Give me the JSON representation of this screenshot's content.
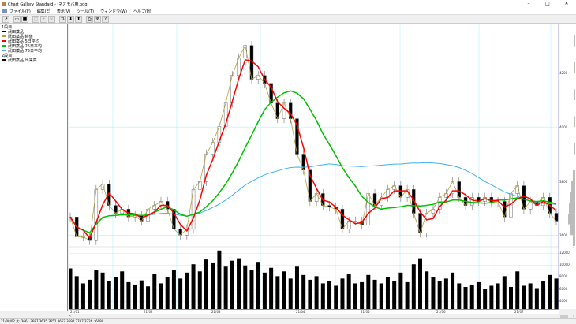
{
  "window": {
    "title": "Chart Gallery Standard - [ネオモバ用.pgg]",
    "minimize": "–",
    "maximize": "□",
    "close": "✕"
  },
  "menu": [
    "ファイル(F)",
    "編集(E)",
    "表示(V)",
    "ツール(T)",
    "ウィンドウ(W)",
    "ヘルプ(H)"
  ],
  "toolbar": [
    {
      "icon": "chart-icon",
      "glyph": "↗"
    },
    {
      "icon": "open-folder-icon",
      "glyph": "▭"
    },
    {
      "icon": "save-icon",
      "glyph": "■"
    },
    {
      "icon": "copy-icon",
      "glyph": "▢",
      "disabled": true
    },
    {
      "icon": "add-icon",
      "glyph": "+",
      "disabled": true
    },
    {
      "icon": "delete-icon",
      "glyph": "×",
      "disabled": true
    },
    {
      "icon": "sort-icon",
      "glyph": "⇅"
    },
    {
      "icon": "arrow-down-icon",
      "glyph": "⬇"
    },
    {
      "icon": "arrow-up-icon",
      "glyph": "⬆"
    },
    {
      "icon": "print-icon",
      "glyph": "⎙"
    },
    {
      "icon": "pin-icon",
      "glyph": "♆"
    },
    {
      "icon": "help-icon",
      "glyph": "?"
    }
  ],
  "legend": {
    "panel1_label": "1段目",
    "panel1": [
      {
        "label": "武田薬品",
        "color": "#000000"
      },
      {
        "label": "武田薬品 終値",
        "color": "#b0a040"
      },
      {
        "label": "武田薬品 5日平均",
        "color": "#ff0000"
      },
      {
        "label": "武田薬品 25日平均",
        "color": "#00c000"
      },
      {
        "label": "武田薬品 75日平均",
        "color": "#40b0f0"
      }
    ],
    "panel2_label": "2段目",
    "panel2": [
      {
        "label": "武田薬品 出来高",
        "color": "#000000"
      }
    ]
  },
  "colors": {
    "close": "#b0a040",
    "ma5": "#ff0000",
    "ma25": "#00c000",
    "ma75": "#40b0f0",
    "grid": "#b0f0f8",
    "axis": "#8888dd"
  },
  "chart_data": {
    "type": "candlestick",
    "price_axis": {
      "ticks": [
        "4200",
        "4000",
        "3800",
        "3600"
      ],
      "range": [
        3560,
        4380
      ]
    },
    "volume_axis": {
      "ticks": [
        "12000",
        "10000",
        "8000",
        "6000",
        "4000"
      ],
      "range": [
        2700,
        13000
      ]
    },
    "date_ticks": [
      "21/01",
      "21/02",
      "21/03",
      "21/04",
      "21/05",
      "21/06",
      "21/07"
    ],
    "close": [
      3667,
      3594,
      3594,
      3580,
      3769,
      3789,
      3710,
      3681,
      3696,
      3667,
      3672,
      3652,
      3696,
      3710,
      3725,
      3696,
      3623,
      3600,
      3623,
      3769,
      3798,
      3900,
      3943,
      4002,
      4089,
      4191,
      4255,
      4302,
      4177,
      4191,
      4162,
      4089,
      4031,
      4089,
      4031,
      3900,
      3841,
      3725,
      3754,
      3710,
      3704,
      3696,
      3623,
      3652,
      3652,
      3637,
      3754,
      3710,
      3740,
      3769,
      3783,
      3740,
      3769,
      3681,
      3608,
      3681,
      3696,
      3740,
      3754,
      3798,
      3740,
      3710,
      3740,
      3725,
      3740,
      3719,
      3725,
      3667,
      3754,
      3783,
      3696,
      3725,
      3710,
      3740,
      3681,
      3652
    ],
    "volume": [
      9500,
      8200,
      7000,
      7600,
      9200,
      8800,
      7400,
      8000,
      9000,
      7200,
      6800,
      7500,
      6500,
      8600,
      7000,
      8000,
      9200,
      7800,
      8800,
      10200,
      9000,
      11000,
      10500,
      12500,
      9800,
      10800,
      11200,
      10000,
      9200,
      10600,
      8800,
      9600,
      8200,
      9000,
      7800,
      9800,
      8400,
      7600,
      8200,
      7000,
      7400,
      6600,
      7800,
      8600,
      7000,
      7200,
      8400,
      7600,
      7000,
      8000,
      7400,
      8800,
      7200,
      10200,
      11200,
      9000,
      8000,
      7400,
      7800,
      8800,
      7000,
      6400,
      6800,
      7200,
      6000,
      6600,
      7000,
      8200,
      6400,
      9000,
      6600,
      7000,
      6200,
      7400,
      8400,
      7800
    ],
    "ma_periods_label": [
      "5日平均",
      "25日平均",
      "75日平均"
    ]
  },
  "status": "21/08/02 大: 3661 3687 3635 3652  3652 3694 3707 3726 : 6090",
  "scroll": {
    "left": "‹",
    "right": "›"
  }
}
